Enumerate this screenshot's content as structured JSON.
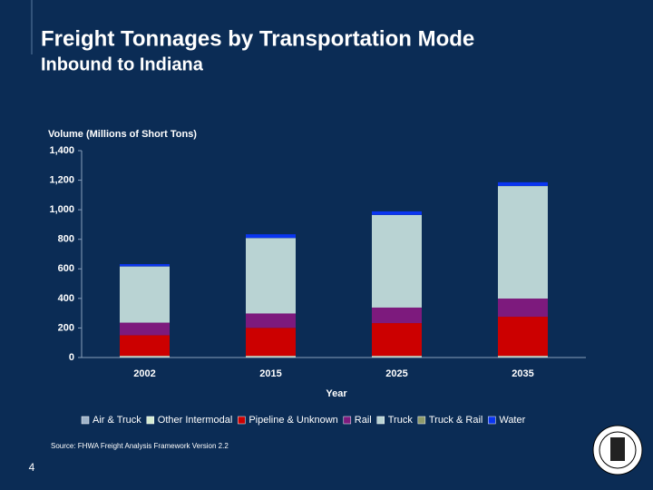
{
  "chart_data": {
    "type": "bar",
    "stacked": true,
    "title": "Freight Tonnages by Transportation Mode",
    "subtitle": "Inbound to Indiana",
    "y_label": "Volume (Millions of Short Tons)",
    "x_label": "Year",
    "source": "Source:  FHWA Freight Analysis Framework Version 2.2",
    "page_number": "4",
    "categories": [
      "2002",
      "2015",
      "2025",
      "2035"
    ],
    "series": [
      {
        "name": "Air & Truck",
        "color": "#9fb3c9",
        "values": [
          2,
          2,
          2,
          2
        ]
      },
      {
        "name": "Other Intermodal",
        "color": "#d6ecd2",
        "values": [
          9,
          9,
          9,
          9
        ]
      },
      {
        "name": "Pipeline & Unknown",
        "color": "#cc0000",
        "values": [
          140,
          190,
          222,
          265
        ]
      },
      {
        "name": "Rail",
        "color": "#7d1a7d",
        "values": [
          85,
          97,
          105,
          123
        ]
      },
      {
        "name": "Truck",
        "color": "#b9d3d3",
        "values": [
          380,
          510,
          626,
          761
        ]
      },
      {
        "name": "Truck & Rail",
        "color": "#8e9a6a",
        "values": [
          1,
          1,
          1,
          1
        ]
      },
      {
        "name": "Water",
        "color": "#0a35f0",
        "values": [
          15,
          25,
          24,
          25
        ]
      }
    ],
    "ylim": [
      0,
      1400
    ],
    "yticks": [
      0,
      200,
      400,
      600,
      800,
      {
        "value": 1000,
        "label": "1,000"
      },
      {
        "value": 1200,
        "label": "1,200"
      },
      {
        "value": 1400,
        "label": "1,400"
      }
    ],
    "legend": "bottom"
  }
}
